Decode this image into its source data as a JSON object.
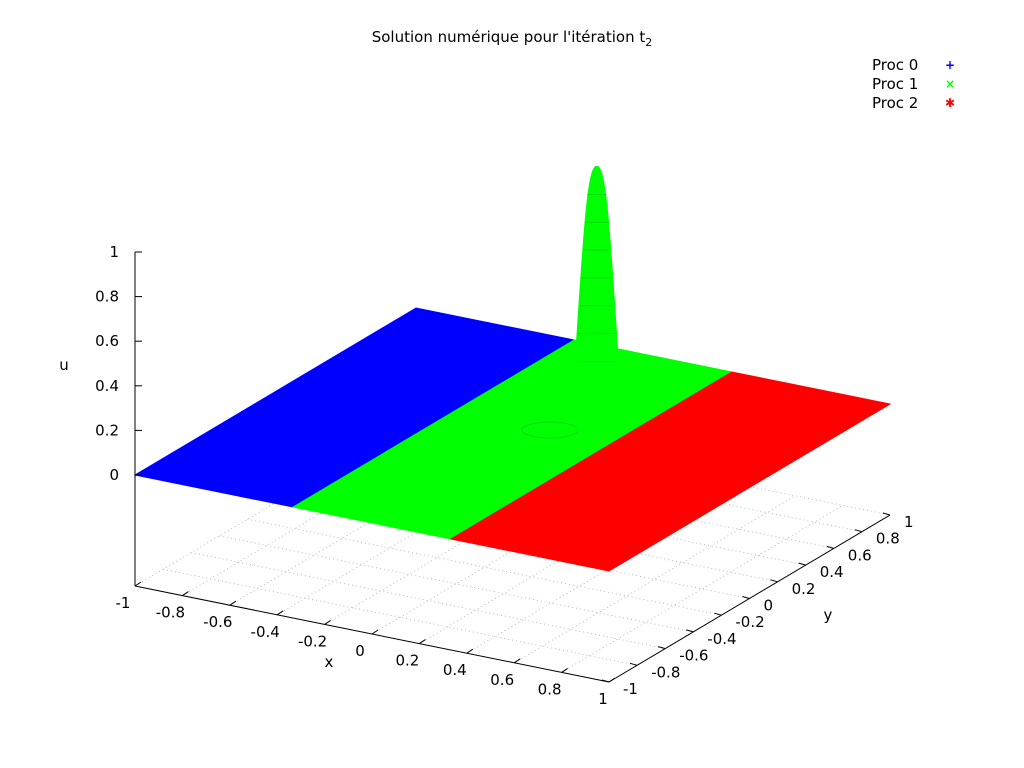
{
  "chart_data": {
    "type": "surface",
    "title": "Solution numérique pour l'itération t",
    "title_subscript": "2",
    "xlabel": "x",
    "ylabel": "y",
    "zlabel": "u",
    "xlim": [
      -1,
      1
    ],
    "ylim": [
      -1,
      1
    ],
    "zlim": [
      0,
      1
    ],
    "x_ticks": [
      "-1",
      "-0.8",
      "-0.6",
      "-0.4",
      "-0.2",
      "0",
      "0.2",
      "0.4",
      "0.6",
      "0.8",
      "1"
    ],
    "y_ticks": [
      "-1",
      "-0.8",
      "-0.6",
      "-0.4",
      "-0.2",
      "0",
      "0.2",
      "0.4",
      "0.6",
      "0.8",
      "1"
    ],
    "z_ticks": [
      "0",
      "0.2",
      "0.4",
      "0.6",
      "0.8",
      "1"
    ],
    "grid": true,
    "legend_position": "top-right",
    "series": [
      {
        "name": "Proc 0",
        "color": "#0000ff",
        "marker": "+",
        "x_range": [
          -1,
          -0.333
        ]
      },
      {
        "name": "Proc 1",
        "color": "#00ff00",
        "marker": "×",
        "x_range": [
          -0.333,
          0.333
        ]
      },
      {
        "name": "Proc 2",
        "color": "#ff0000",
        "marker": "✱",
        "x_range": [
          0.333,
          1
        ]
      }
    ],
    "peak": {
      "x": 0,
      "y": 0.6,
      "value": 1.0
    }
  }
}
